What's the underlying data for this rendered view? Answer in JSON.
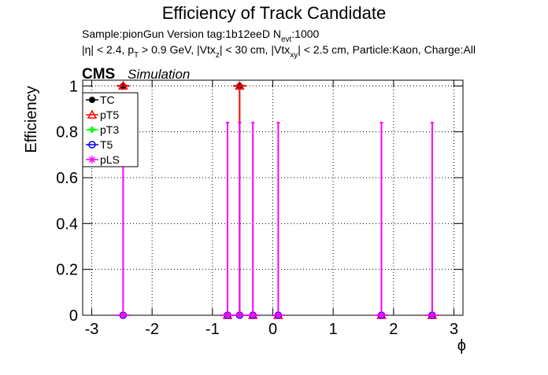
{
  "chart_data": {
    "type": "scatter",
    "title": "Efficiency of Track Candidate",
    "subtitle_1": [
      "Sample:pionGun   Version tag:1b12eeD  N",
      "evt",
      ":1000"
    ],
    "subtitle_2": [
      "|η| < 2.4, p",
      "T",
      " > 0.9 GeV, |Vtx",
      "z",
      "| < 30 cm, |Vtx",
      "xy",
      "| < 2.5 cm, Particle:Kaon, Charge:All"
    ],
    "cms_label": "CMS",
    "cms_sublabel": "Simulation",
    "x_label": "ϕ",
    "y_label": "Efficiency",
    "x": [
      -2.48,
      -0.75,
      -0.55,
      -0.33,
      0.09,
      1.8,
      2.64
    ],
    "series": [
      {
        "name": "TC",
        "color": "#000000",
        "marker": "filled-circle",
        "values": [
          1,
          0,
          1,
          0,
          0,
          0,
          0
        ]
      },
      {
        "name": "pT5",
        "color": "#ff0000",
        "marker": "open-triangle",
        "values": [
          1,
          0,
          1,
          0,
          0,
          0,
          0
        ],
        "errors_low": [
          0,
          0,
          1,
          0,
          0,
          0,
          0
        ]
      },
      {
        "name": "pT3",
        "color": "#00ff00",
        "marker": "filled-cross",
        "values": [
          0,
          0,
          0,
          0,
          0,
          0,
          0
        ]
      },
      {
        "name": "T5",
        "color": "#0000ff",
        "marker": "open-circle",
        "values": [
          0,
          0,
          0,
          0,
          0,
          0,
          0
        ]
      },
      {
        "name": "pLS",
        "color": "#ff00ff",
        "marker": "open-star",
        "values": [
          0,
          0,
          0,
          0,
          0,
          0,
          0
        ],
        "errors_high": [
          0.84,
          0.84,
          0.84,
          0.84,
          0.84,
          0.84,
          0.84
        ]
      }
    ],
    "xlim": [
      -3.15,
      3.15
    ],
    "ylim": [
      0,
      1.025
    ],
    "xticks": [
      -3,
      -2,
      -1,
      0,
      1,
      2,
      3
    ],
    "yticks": [
      0,
      0.2,
      0.4,
      0.6,
      0.8,
      1
    ],
    "grid": true,
    "legend": "upper-left"
  }
}
